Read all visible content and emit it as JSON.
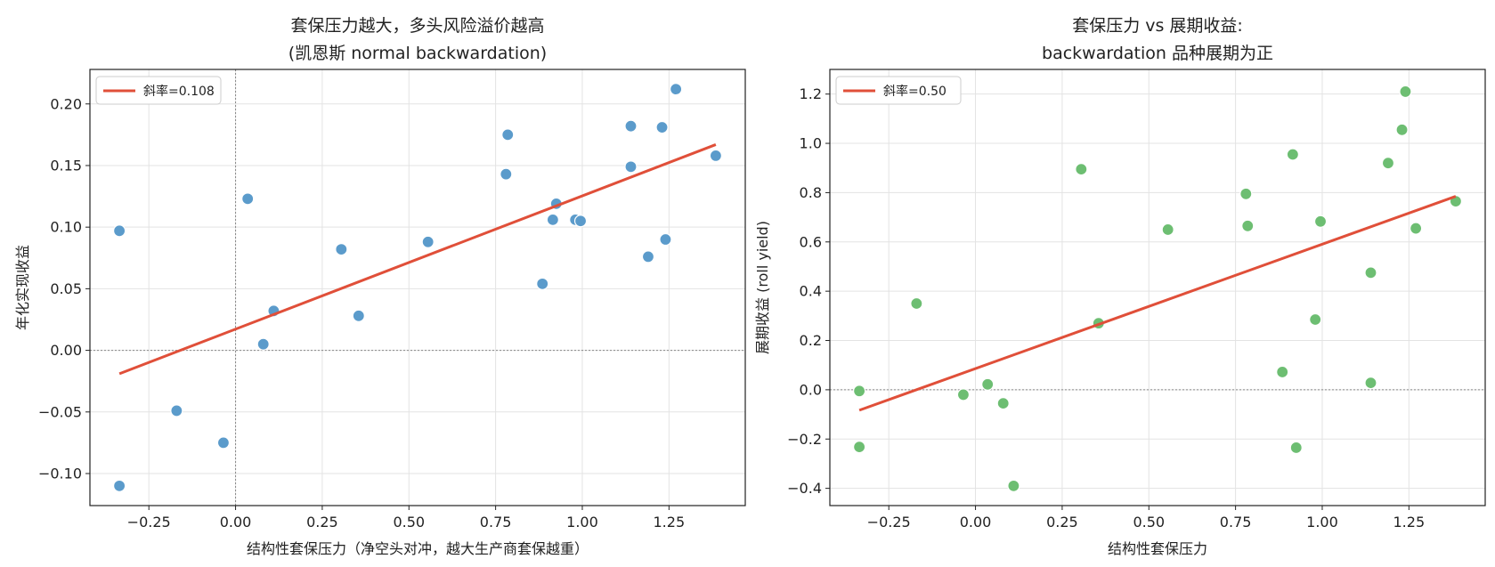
{
  "chart_data": [
    {
      "type": "scatter",
      "title": "套保压力越大，多头风险溢价越高",
      "subtitle": "(凯恩斯 normal backwardation)",
      "xlabel": "结构性套保压力（净空头对冲，越大生产商套保越重）",
      "ylabel": "年化实现收益",
      "xlim": [
        -0.42,
        1.47
      ],
      "ylim": [
        -0.126,
        0.228
      ],
      "xticks": [
        -0.25,
        0.0,
        0.25,
        0.5,
        0.75,
        1.0,
        1.25
      ],
      "xtick_labels": [
        "−0.25",
        "0.00",
        "0.25",
        "0.50",
        "0.75",
        "1.00",
        "1.25"
      ],
      "yticks": [
        -0.1,
        -0.05,
        0.0,
        0.05,
        0.1,
        0.15,
        0.2
      ],
      "ytick_labels": [
        "−0.10",
        "−0.05",
        "0.00",
        "0.05",
        "0.10",
        "0.15",
        "0.20"
      ],
      "grid": true,
      "legend_position": "top-left",
      "point_color": "#5B9BCB",
      "fit_color": "#E04F39",
      "fit_label": "斜率=0.108",
      "fit_line": [
        [
          -0.335,
          -0.019
        ],
        [
          1.385,
          0.167
        ]
      ],
      "ref_lines": {
        "x": 0.0,
        "y": 0.0
      },
      "points": [
        [
          -0.335,
          0.097
        ],
        [
          -0.335,
          -0.11
        ],
        [
          -0.17,
          -0.049
        ],
        [
          -0.035,
          -0.075
        ],
        [
          0.035,
          0.123
        ],
        [
          0.08,
          0.005
        ],
        [
          0.11,
          0.032
        ],
        [
          0.305,
          0.082
        ],
        [
          0.355,
          0.028
        ],
        [
          0.555,
          0.088
        ],
        [
          0.78,
          0.143
        ],
        [
          0.785,
          0.175
        ],
        [
          0.885,
          0.054
        ],
        [
          0.915,
          0.106
        ],
        [
          0.925,
          0.119
        ],
        [
          0.98,
          0.106
        ],
        [
          0.995,
          0.105
        ],
        [
          1.14,
          0.182
        ],
        [
          1.14,
          0.149
        ],
        [
          1.19,
          0.076
        ],
        [
          1.23,
          0.181
        ],
        [
          1.24,
          0.09
        ],
        [
          1.27,
          0.212
        ],
        [
          1.385,
          0.158
        ]
      ]
    },
    {
      "type": "scatter",
      "title": "套保压力 vs 展期收益:",
      "subtitle": "backwardation 品种展期为正",
      "xlabel": "结构性套保压力",
      "ylabel": "展期收益 (roll yield)",
      "xlim": [
        -0.42,
        1.47
      ],
      "ylim": [
        -0.47,
        1.3
      ],
      "xticks": [
        -0.25,
        0.0,
        0.25,
        0.5,
        0.75,
        1.0,
        1.25
      ],
      "xtick_labels": [
        "−0.25",
        "0.00",
        "0.25",
        "0.50",
        "0.75",
        "1.00",
        "1.25"
      ],
      "yticks": [
        -0.4,
        -0.2,
        0.0,
        0.2,
        0.4,
        0.6,
        0.8,
        1.0,
        1.2
      ],
      "ytick_labels": [
        "−0.4",
        "−0.2",
        "0.0",
        "0.2",
        "0.4",
        "0.6",
        "0.8",
        "1.0",
        "1.2"
      ],
      "grid": true,
      "legend_position": "top-left",
      "point_color": "#6DBE72",
      "fit_color": "#E04F39",
      "fit_label": "斜率=0.50",
      "fit_line": [
        [
          -0.335,
          -0.083
        ],
        [
          1.385,
          0.785
        ]
      ],
      "ref_lines": {
        "y": 0.0
      },
      "points": [
        [
          -0.335,
          -0.005
        ],
        [
          -0.335,
          -0.232
        ],
        [
          -0.17,
          0.35
        ],
        [
          -0.035,
          -0.02
        ],
        [
          0.035,
          0.022
        ],
        [
          0.08,
          -0.055
        ],
        [
          0.11,
          -0.39
        ],
        [
          0.305,
          0.895
        ],
        [
          0.355,
          0.27
        ],
        [
          0.555,
          0.65
        ],
        [
          0.78,
          0.795
        ],
        [
          0.785,
          0.665
        ],
        [
          0.885,
          0.072
        ],
        [
          0.915,
          0.955
        ],
        [
          0.925,
          -0.235
        ],
        [
          0.98,
          0.285
        ],
        [
          0.995,
          0.683
        ],
        [
          1.14,
          0.475
        ],
        [
          1.14,
          0.028
        ],
        [
          1.19,
          0.92
        ],
        [
          1.23,
          1.055
        ],
        [
          1.24,
          1.21
        ],
        [
          1.27,
          0.655
        ],
        [
          1.385,
          0.765
        ]
      ]
    }
  ]
}
